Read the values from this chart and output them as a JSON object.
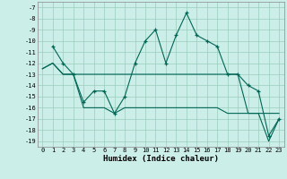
{
  "xlabel": "Humidex (Indice chaleur)",
  "xlim": [
    -0.5,
    23.5
  ],
  "ylim": [
    -19.5,
    -6.5
  ],
  "yticks": [
    -7,
    -8,
    -9,
    -10,
    -11,
    -12,
    -13,
    -14,
    -15,
    -16,
    -17,
    -18,
    -19
  ],
  "xticks": [
    0,
    1,
    2,
    3,
    4,
    5,
    6,
    7,
    8,
    9,
    10,
    11,
    12,
    13,
    14,
    15,
    16,
    17,
    18,
    19,
    20,
    21,
    22,
    23
  ],
  "bg_color": "#cceee8",
  "grid_color": "#99ccbb",
  "line_color": "#006655",
  "line1": [
    null,
    -10.5,
    -12.0,
    -13.0,
    -15.5,
    -14.5,
    -14.5,
    -16.5,
    -15.0,
    -12.0,
    -10.0,
    -9.0,
    -12.0,
    -9.5,
    -7.5,
    -9.5,
    -10.0,
    -10.5,
    -13.0,
    -13.0,
    -14.0,
    -14.5,
    -18.5,
    -17.0
  ],
  "line2": [
    -12.5,
    -12.0,
    -13.0,
    -13.0,
    -13.0,
    -13.0,
    -13.0,
    -13.0,
    -13.0,
    -13.0,
    -13.0,
    -13.0,
    -13.0,
    -13.0,
    -13.0,
    -13.0,
    -13.0,
    -13.0,
    -13.0,
    -13.0,
    -16.5,
    -16.5,
    -16.5,
    -16.5
  ],
  "line3": [
    -12.5,
    -12.0,
    -13.0,
    -13.0,
    -16.0,
    -16.0,
    -16.0,
    -16.5,
    -16.0,
    -16.0,
    -16.0,
    -16.0,
    -16.0,
    -16.0,
    -16.0,
    -16.0,
    -16.0,
    -16.0,
    -16.5,
    -16.5,
    -16.5,
    -16.5,
    -19.0,
    -17.0
  ],
  "tick_fontsize": 5.0,
  "xlabel_fontsize": 6.5
}
